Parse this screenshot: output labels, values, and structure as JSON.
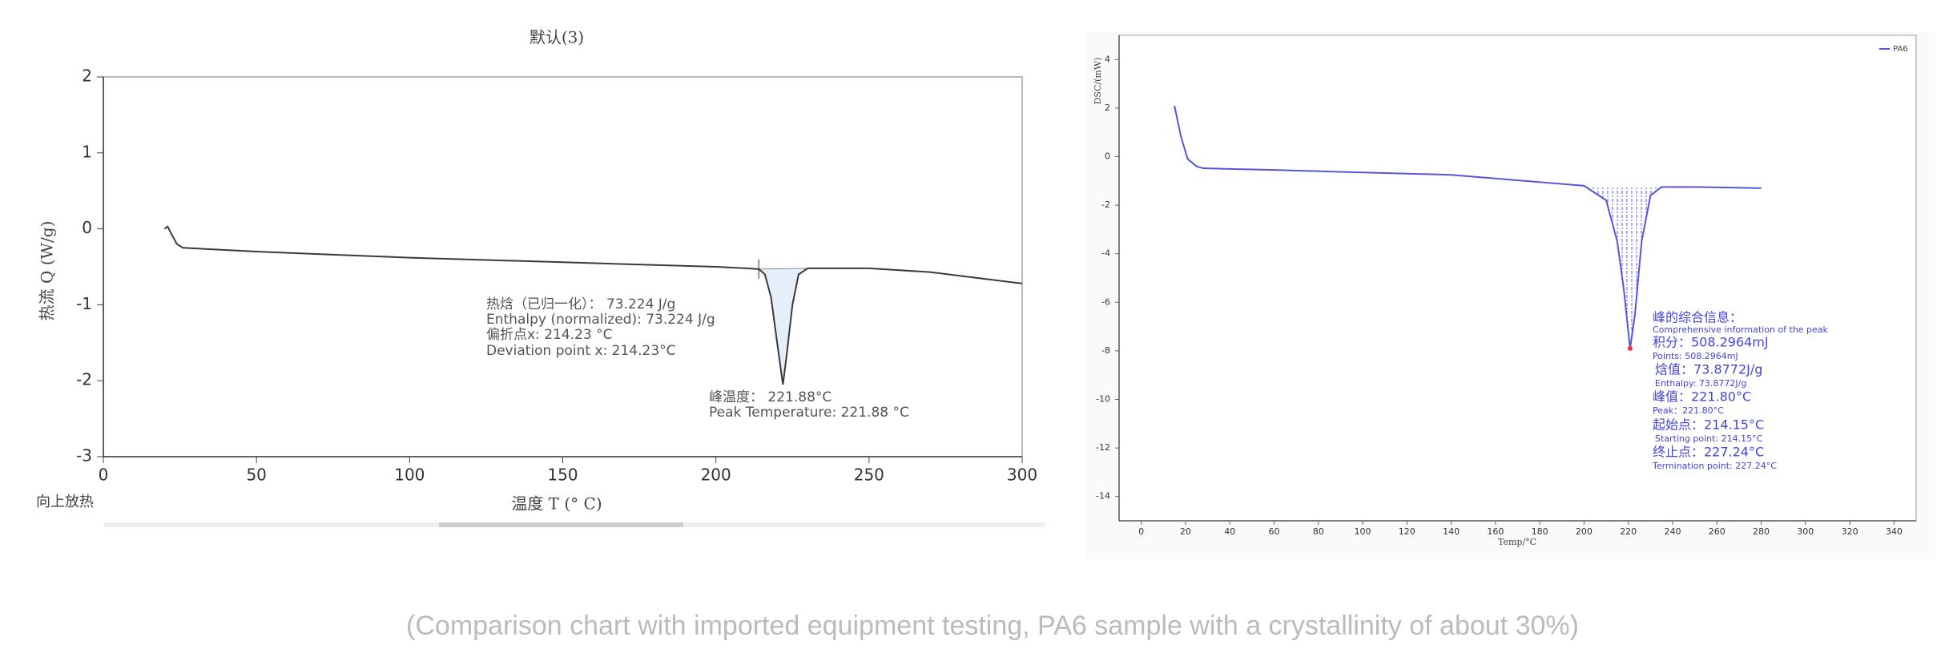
{
  "chart_data": [
    {
      "type": "line",
      "title": "默认(3)",
      "x_label": "温度 T (° C)",
      "y_label": "热流 Q (W/g)",
      "note": "向上放热",
      "x": [
        20,
        21,
        22,
        24,
        26,
        50,
        100,
        150,
        200,
        210,
        214,
        216,
        218,
        220,
        221.88,
        223,
        225,
        227,
        230,
        250,
        270,
        300
      ],
      "series": [
        {
          "color": "#3a3a3a",
          "values": [
            0.0,
            0.03,
            -0.05,
            -0.2,
            -0.25,
            -0.3,
            -0.38,
            -0.44,
            -0.5,
            -0.52,
            -0.53,
            -0.6,
            -0.9,
            -1.5,
            -2.05,
            -1.7,
            -1.0,
            -0.6,
            -0.52,
            -0.52,
            -0.57,
            -0.72
          ]
        }
      ],
      "xlim": [
        0,
        300
      ],
      "xticks": [
        0,
        50,
        100,
        150,
        200,
        250,
        300
      ],
      "ylim": [
        -3,
        2
      ],
      "yticks": [
        -3,
        -2,
        -1,
        0,
        1,
        2
      ],
      "annotations": [
        "热焓（已归一化）： 73.224 J/g",
        "Enthalpy (normalized): 73.224 J/g",
        "偏折点x: 214.23 °C",
        "Deviation point x: 214.23°C",
        "峰温度： 221.88°C",
        "Peak Temperature: 221.88 °C"
      ]
    },
    {
      "type": "line",
      "x_label": "Temp/°C",
      "y_label": "DSC/(mW)",
      "x": [
        15,
        18,
        21,
        25,
        28,
        60,
        100,
        140,
        180,
        200,
        210,
        215,
        218,
        220.8,
        223,
        226,
        230,
        235,
        250,
        280
      ],
      "series": [
        {
          "name": "PA6",
          "color": "#5555dd",
          "values": [
            2.1,
            0.8,
            -0.1,
            -0.4,
            -0.48,
            -0.55,
            -0.65,
            -0.75,
            -1.05,
            -1.2,
            -1.8,
            -3.5,
            -5.5,
            -7.9,
            -6.5,
            -3.5,
            -1.6,
            -1.25,
            -1.25,
            -1.3
          ]
        }
      ],
      "xlim": [
        -10,
        350
      ],
      "xticks": [
        0,
        20,
        40,
        60,
        80,
        100,
        120,
        140,
        160,
        180,
        200,
        220,
        240,
        260,
        280,
        300,
        320,
        340
      ],
      "ylim": [
        -15,
        5
      ],
      "yticks": [
        -14,
        -12,
        -10,
        -8,
        -6,
        -4,
        -2,
        0,
        2,
        4
      ],
      "annotations": [
        "峰的综合信息：",
        "Comprehensive information of the peak",
        "积分：508.2964mJ",
        "Points: 508.2964mJ",
        "焓值：73.8772J/g",
        "Enthalpy: 73.8772J/g",
        "峰值：221.80°C",
        "Peak：221.80°C",
        "起始点：214.15°C",
        "Starting point: 214.15°C",
        "终止点：227.24°C",
        "Termination point: 227.24°C"
      ]
    }
  ],
  "caption": "(Comparison chart with imported equipment testing, PA6 sample with a crystallinity of about 30%)"
}
